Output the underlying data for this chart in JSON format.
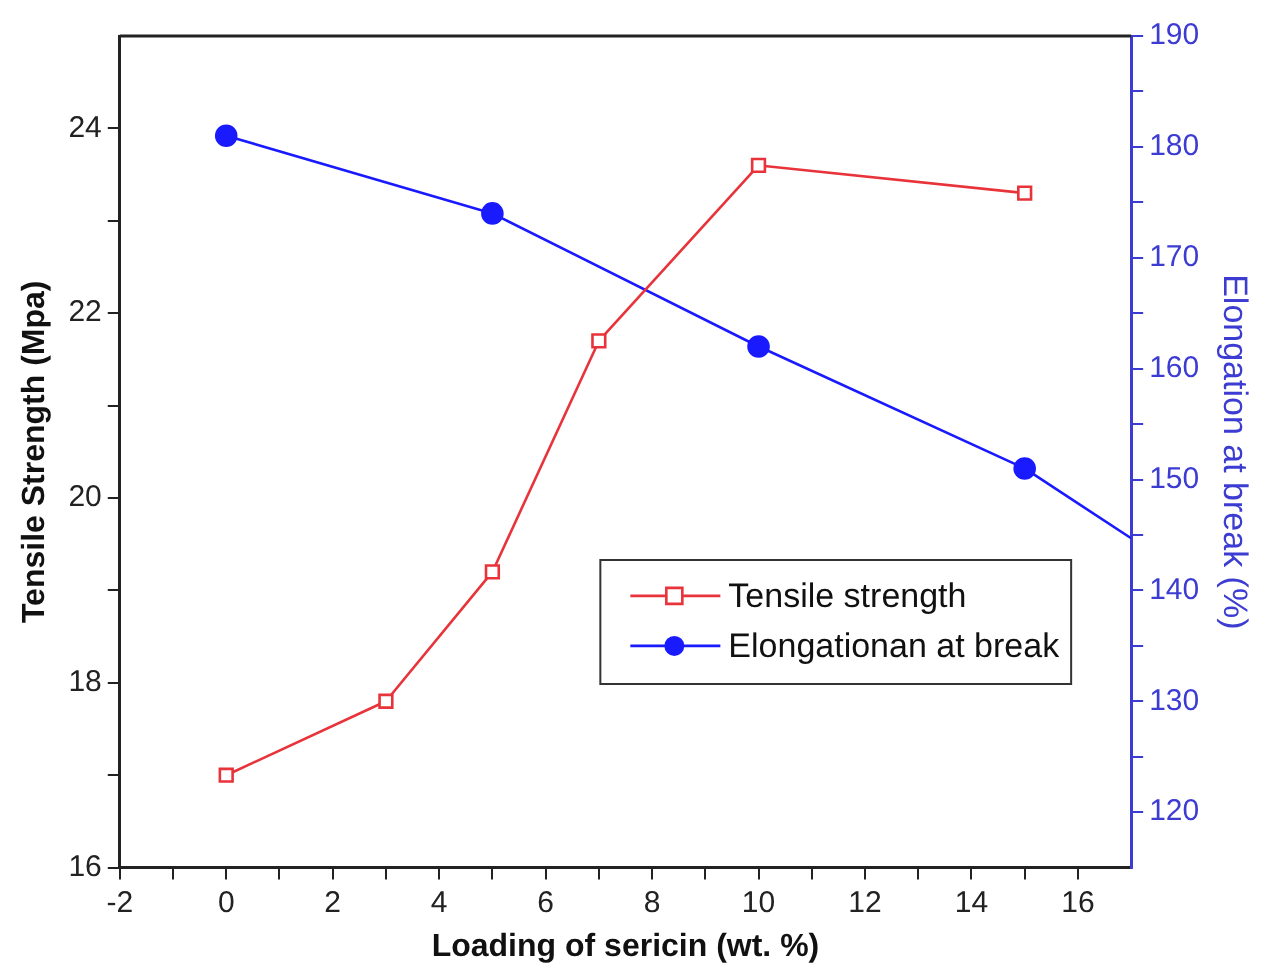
{
  "chart_data": {
    "type": "line",
    "xlabel": "Loading of sericin (wt. %)",
    "ylabel": "Tensile Strength (Mpa)",
    "y2label": "Elongation at break (%)",
    "xlim": [
      -2,
      17
    ],
    "xticks": [
      -2,
      {
        "value": -1,
        "label": null
      },
      0,
      {
        "value": 1,
        "label": null
      },
      2,
      {
        "value": 3,
        "label": null
      },
      4,
      {
        "value": 5,
        "label": null
      },
      6,
      {
        "value": 7,
        "label": null
      },
      8,
      {
        "value": 9,
        "label": null
      },
      10,
      {
        "value": 11,
        "label": null
      },
      12,
      {
        "value": 13,
        "label": null
      },
      14,
      {
        "value": 15,
        "label": null
      },
      16
    ],
    "ylim": [
      16,
      25
    ],
    "yticks": [
      16,
      {
        "value": 17,
        "label": null
      },
      18,
      {
        "value": 19,
        "label": null
      },
      20,
      {
        "value": 21,
        "label": null
      },
      22,
      {
        "value": 23,
        "label": null
      },
      24
    ],
    "y2lim": [
      115,
      190
    ],
    "y2ticks": [
      120,
      {
        "value": 125,
        "label": null
      },
      130,
      {
        "value": 135,
        "label": null
      },
      140,
      {
        "value": 145,
        "label": null
      },
      150,
      {
        "value": 155,
        "label": null
      },
      160,
      {
        "value": 165,
        "label": null
      },
      170,
      {
        "value": 175,
        "label": null
      },
      180,
      {
        "value": 185,
        "label": null
      },
      190
    ],
    "grid": false,
    "legend": "right",
    "series": [
      {
        "name": "Tensile strength",
        "color": "#e8333a",
        "marker": "square",
        "x": [
          0,
          3,
          5,
          7,
          10,
          15
        ],
        "values": [
          17.0,
          17.8,
          19.2,
          21.7,
          23.6,
          23.3
        ]
      },
      {
        "name": "Elongationan at break",
        "color": "#1a1aff",
        "marker": "circle",
        "axis": "y2",
        "x": [
          0,
          5,
          10,
          15,
          17
        ],
        "values": [
          181,
          174,
          162,
          151,
          144.7
        ]
      }
    ]
  }
}
